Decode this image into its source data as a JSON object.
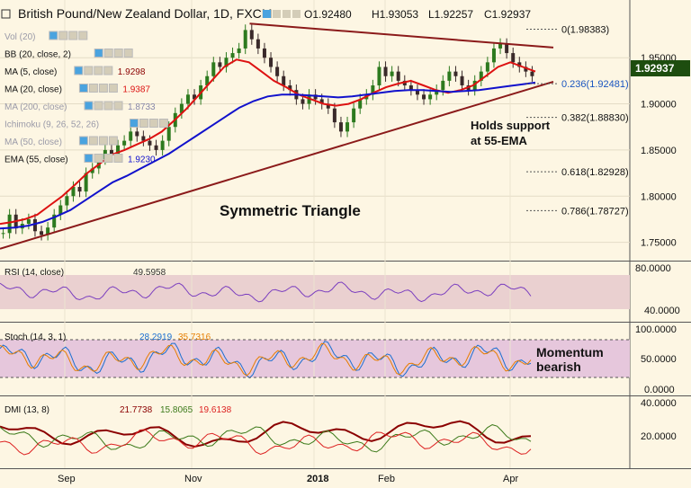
{
  "header": {
    "title": "British Pound/New Zealand Dollar, 1D, FXCM",
    "ohlc": [
      "O1.92480",
      "H1.93053",
      "L1.92257",
      "C1.92937"
    ]
  },
  "indicators": [
    {
      "label": "Vol (20)",
      "value": "",
      "faded": true
    },
    {
      "label": "BB (20, close, 2)",
      "value": "",
      "faded": false
    },
    {
      "label": "MA (5, close)",
      "value": "1.9298",
      "faded": false,
      "color": "#8b0000"
    },
    {
      "label": "MA (20, close)",
      "value": "1.9387",
      "faded": false,
      "color": "#dd1111"
    },
    {
      "label": "MA (200, close)",
      "value": "1.8733",
      "faded": true,
      "color": "#8888aa"
    },
    {
      "label": "Ichimoku (9, 26, 52, 26)",
      "value": "",
      "faded": true
    },
    {
      "label": "MA (50, close)",
      "value": "",
      "faded": true
    },
    {
      "label": "EMA (55, close)",
      "value": "1.9230",
      "faded": false,
      "color": "#1111cc"
    }
  ],
  "annotations": {
    "triangle": "Symmetric Triangle",
    "support_line1": "Holds support",
    "support_line2": "at 55-EMA",
    "momentum_line1": "Momentum",
    "momentum_line2": "bearish",
    "watermark": "British Pound/New Zealand Dollar"
  },
  "price_badge": "1.92937",
  "fib_levels": [
    {
      "label": "0(1.98383)",
      "y": 1.98383
    },
    {
      "label": "0.236(1.92481)",
      "y": 1.92481
    },
    {
      "label": "0.382(1.88830)",
      "y": 1.8883
    },
    {
      "label": "0.618(1.82928)",
      "y": 1.82928
    },
    {
      "label": "0.786(1.78727)",
      "y": 1.78727
    }
  ],
  "rsi_panel": {
    "label": "RSI (14, close)",
    "value": "49.5958",
    "ticks": [
      "80.0000",
      "40.0000"
    ]
  },
  "stoch_panel": {
    "label": "Stoch (14, 3, 1)",
    "k": "28.2919",
    "d": "35.7316",
    "ticks": [
      "100.0000",
      "50.0000",
      "0.0000"
    ]
  },
  "dmi_panel": {
    "label": "DMI (13, 8)",
    "adx": "21.7738",
    "plus": "15.8065",
    "minus": "19.6138",
    "ticks": [
      "40.0000",
      "20.0000"
    ]
  },
  "chart_data": {
    "type": "line",
    "title": "British Pound/New Zealand Dollar, 1D, FXCM",
    "x_ticks": [
      "Sep",
      "Nov",
      "2018",
      "Feb",
      "Apr"
    ],
    "y_ticks": [
      "1.95000",
      "1.90000",
      "1.85000",
      "1.80000",
      "1.75000"
    ],
    "ylim": [
      1.735,
      1.995
    ],
    "price_series": [
      1.76,
      1.78,
      1.765,
      1.77,
      1.775,
      1.762,
      1.758,
      1.766,
      1.78,
      1.79,
      1.8,
      1.81,
      1.805,
      1.825,
      1.83,
      1.84,
      1.85,
      1.845,
      1.855,
      1.86,
      1.87,
      1.865,
      1.86,
      1.855,
      1.85,
      1.86,
      1.875,
      1.89,
      1.9,
      1.91,
      1.905,
      1.92,
      1.93,
      1.945,
      1.94,
      1.95,
      1.955,
      1.96,
      1.98,
      1.97,
      1.96,
      1.95,
      1.94,
      1.93,
      1.92,
      1.915,
      1.905,
      1.9,
      1.91,
      1.905,
      1.9,
      1.895,
      1.88,
      1.87,
      1.88,
      1.895,
      1.905,
      1.91,
      1.92,
      1.94,
      1.93,
      1.935,
      1.925,
      1.92,
      1.915,
      1.91,
      1.905,
      1.91,
      1.915,
      1.925,
      1.935,
      1.93,
      1.92,
      1.915,
      1.925,
      1.935,
      1.945,
      1.96,
      1.965,
      1.955,
      1.945,
      1.94,
      1.935,
      1.93
    ],
    "series": [
      {
        "name": "MA (20, close)",
        "color": "#dd1111",
        "values": [
          1.77,
          1.772,
          1.775,
          1.78,
          1.79,
          1.8,
          1.812,
          1.825,
          1.835,
          1.845,
          1.85,
          1.856,
          1.862,
          1.87,
          1.882,
          1.895,
          1.91,
          1.925,
          1.94,
          1.948,
          1.945,
          1.935,
          1.925,
          1.918,
          1.91,
          1.905,
          1.9,
          1.898,
          1.9,
          1.905,
          1.912,
          1.918,
          1.922,
          1.925,
          1.92,
          1.915,
          1.912,
          1.915,
          1.92,
          1.93,
          1.94,
          1.945,
          1.94,
          1.935
        ]
      },
      {
        "name": "EMA (55, close)",
        "color": "#1111cc",
        "values": [
          1.765,
          1.766,
          1.768,
          1.772,
          1.778,
          1.785,
          1.795,
          1.805,
          1.815,
          1.822,
          1.83,
          1.838,
          1.846,
          1.856,
          1.866,
          1.876,
          1.886,
          1.896,
          1.903,
          1.908,
          1.91,
          1.91,
          1.909,
          1.908,
          1.907,
          1.908,
          1.91,
          1.912,
          1.914,
          1.915,
          1.915,
          1.914,
          1.913,
          1.914,
          1.915,
          1.917,
          1.919,
          1.921,
          1.923
        ]
      }
    ],
    "trendlines": [
      {
        "name": "upper",
        "x": [
          0.37,
          0.8
        ],
        "y": [
          1.987,
          1.961
        ]
      },
      {
        "name": "lower",
        "x": [
          0,
          0.8
        ],
        "y": [
          1.743,
          1.924
        ]
      }
    ]
  }
}
